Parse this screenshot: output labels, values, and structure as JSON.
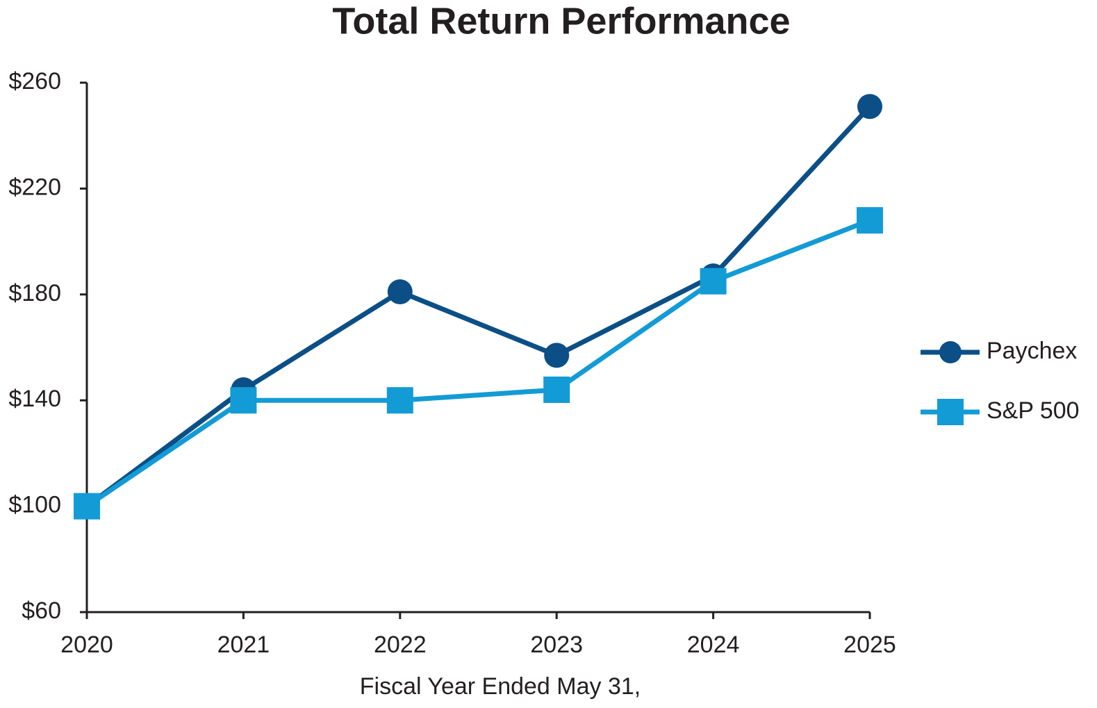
{
  "chart_data": {
    "type": "line",
    "title": "Total Return Performance",
    "x_label": "Fiscal Year Ended May 31,",
    "categories": [
      "2020",
      "2021",
      "2022",
      "2023",
      "2024",
      "2025"
    ],
    "series": [
      {
        "name": "Paychex",
        "color": "#0b4f86",
        "marker": "circle",
        "values": [
          100,
          144,
          181,
          157,
          187,
          251
        ]
      },
      {
        "name": "S&P 500",
        "color": "#139bd6",
        "marker": "square",
        "values": [
          100,
          140,
          140,
          144,
          185,
          208
        ]
      }
    ],
    "ylim": [
      60,
      260
    ],
    "yticks": [
      {
        "value": 60,
        "label": "$60"
      },
      {
        "value": 100,
        "label": "$100"
      },
      {
        "value": 140,
        "label": "$140"
      },
      {
        "value": 180,
        "label": "$180"
      },
      {
        "value": 220,
        "label": "$220"
      },
      {
        "value": 260,
        "label": "$260"
      }
    ],
    "grid": false,
    "legend": "right"
  }
}
